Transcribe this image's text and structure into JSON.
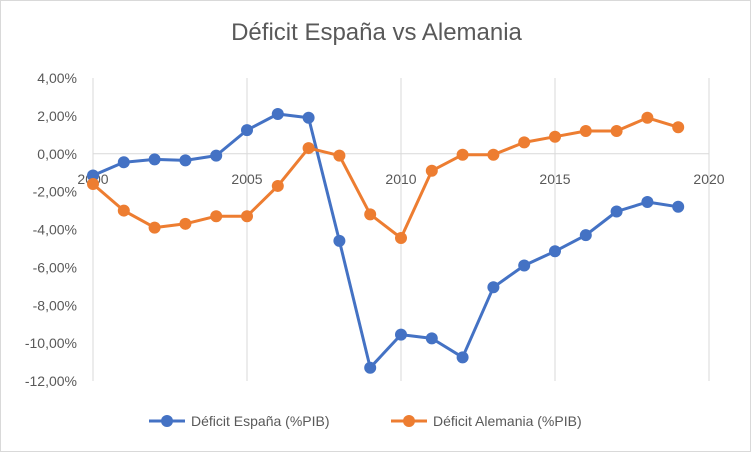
{
  "chart_data": {
    "type": "line",
    "title": "Déficit España vs Alemania",
    "xlabel": "",
    "ylabel": "",
    "xlim": [
      2000,
      2020
    ],
    "ylim": [
      -12,
      4
    ],
    "x_ticks": [
      2000,
      2005,
      2010,
      2015,
      2020
    ],
    "x_tick_labels": [
      "2000",
      "2005",
      "2010",
      "2015",
      "2020"
    ],
    "y_ticks": [
      4,
      2,
      0,
      -2,
      -4,
      -6,
      -8,
      -10,
      -12
    ],
    "y_tick_labels": [
      "4,00%",
      "2,00%",
      "0,00%",
      "-2,00%",
      "-4,00%",
      "-6,00%",
      "-8,00%",
      "-10,00%",
      "-12,00%"
    ],
    "grid": "vertical",
    "legend_position": "bottom",
    "x": [
      2000,
      2001,
      2002,
      2003,
      2004,
      2005,
      2006,
      2007,
      2008,
      2009,
      2010,
      2011,
      2012,
      2013,
      2014,
      2015,
      2016,
      2017,
      2018,
      2019
    ],
    "series": [
      {
        "name": "Déficit España (%PIB)",
        "color": "#4472c4",
        "values": [
          -1.15,
          -0.45,
          -0.3,
          -0.35,
          -0.1,
          1.25,
          2.1,
          1.9,
          -4.6,
          -11.3,
          -9.55,
          -9.75,
          -10.75,
          -7.05,
          -5.9,
          -5.15,
          -4.3,
          -3.05,
          -2.55,
          -2.8
        ]
      },
      {
        "name": "Déficit Alemania (%PIB)",
        "color": "#ed7d31",
        "values": [
          -1.6,
          -3.0,
          -3.9,
          -3.7,
          -3.3,
          -3.3,
          -1.7,
          0.3,
          -0.1,
          -3.2,
          -4.45,
          -0.9,
          -0.05,
          -0.05,
          0.6,
          0.9,
          1.2,
          1.2,
          1.9,
          1.4
        ]
      }
    ]
  }
}
